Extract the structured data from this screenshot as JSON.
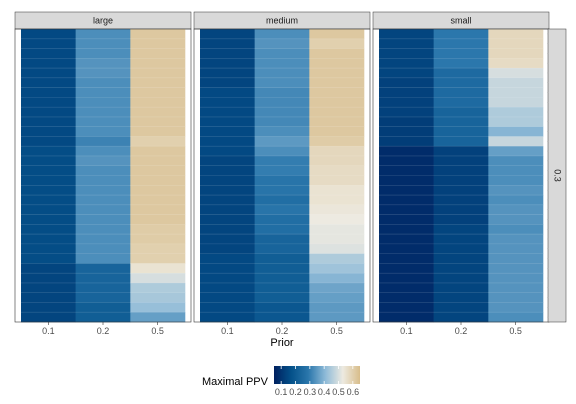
{
  "chart_data": {
    "type": "heatmap",
    "xlabel": "Prior",
    "x_categories": [
      "0.1",
      "0.2",
      "0.5"
    ],
    "facets": [
      "large",
      "medium",
      "small"
    ],
    "row_strip": "0.3",
    "legend": {
      "title": "Maximal PPV",
      "breaks": [
        "0.1",
        "0.2",
        "0.3",
        "0.4",
        "0.5",
        "0.6"
      ],
      "break_values": [
        0.1,
        0.2,
        0.3,
        0.4,
        0.5,
        0.6
      ],
      "limits": [
        0.05,
        0.65
      ],
      "palette": [
        "#00205f",
        "#04518a",
        "#2b77ac",
        "#8fbbd8",
        "#edeae1",
        "#d8bd8a"
      ],
      "placement": "bottom"
    },
    "rows": 30,
    "values": {
      "large": {
        "0.1": [
          0.15,
          0.15,
          0.15,
          0.15,
          0.15,
          0.15,
          0.15,
          0.15,
          0.15,
          0.15,
          0.15,
          0.15,
          0.16,
          0.16,
          0.16,
          0.16,
          0.16,
          0.16,
          0.16,
          0.16,
          0.16,
          0.16,
          0.16,
          0.16,
          0.14,
          0.14,
          0.14,
          0.14,
          0.14,
          0.14
        ],
        "0.2": [
          0.33,
          0.33,
          0.33,
          0.34,
          0.34,
          0.33,
          0.33,
          0.33,
          0.33,
          0.33,
          0.33,
          0.31,
          0.33,
          0.34,
          0.33,
          0.33,
          0.33,
          0.33,
          0.33,
          0.33,
          0.33,
          0.33,
          0.33,
          0.33,
          0.23,
          0.23,
          0.23,
          0.23,
          0.21,
          0.21
        ],
        "0.5": [
          0.62,
          0.62,
          0.62,
          0.62,
          0.62,
          0.62,
          0.62,
          0.62,
          0.62,
          0.62,
          0.62,
          0.6,
          0.62,
          0.62,
          0.62,
          0.62,
          0.62,
          0.62,
          0.62,
          0.62,
          0.61,
          0.61,
          0.6,
          0.6,
          0.55,
          0.5,
          0.45,
          0.44,
          0.42,
          0.36
        ]
      },
      "medium": {
        "0.1": [
          0.14,
          0.14,
          0.14,
          0.14,
          0.14,
          0.14,
          0.15,
          0.15,
          0.15,
          0.15,
          0.15,
          0.15,
          0.15,
          0.14,
          0.14,
          0.14,
          0.14,
          0.14,
          0.14,
          0.14,
          0.14,
          0.14,
          0.14,
          0.15,
          0.15,
          0.15,
          0.15,
          0.15,
          0.15,
          0.15
        ],
        "0.2": [
          0.33,
          0.34,
          0.33,
          0.33,
          0.33,
          0.33,
          0.32,
          0.32,
          0.32,
          0.32,
          0.33,
          0.35,
          0.33,
          0.3,
          0.3,
          0.28,
          0.28,
          0.26,
          0.28,
          0.26,
          0.26,
          0.23,
          0.23,
          0.21,
          0.21,
          0.21,
          0.21,
          0.21,
          0.19,
          0.19
        ],
        "0.5": [
          0.62,
          0.6,
          0.62,
          0.62,
          0.62,
          0.62,
          0.62,
          0.62,
          0.62,
          0.62,
          0.62,
          0.61,
          0.58,
          0.58,
          0.57,
          0.57,
          0.55,
          0.55,
          0.54,
          0.53,
          0.52,
          0.52,
          0.51,
          0.45,
          0.43,
          0.4,
          0.37,
          0.36,
          0.35,
          0.35
        ]
      },
      "small": {
        "0.1": [
          0.14,
          0.14,
          0.14,
          0.14,
          0.14,
          0.13,
          0.13,
          0.13,
          0.13,
          0.12,
          0.12,
          0.12,
          0.08,
          0.08,
          0.08,
          0.08,
          0.08,
          0.08,
          0.08,
          0.08,
          0.08,
          0.08,
          0.08,
          0.08,
          0.08,
          0.08,
          0.08,
          0.08,
          0.08,
          0.08
        ],
        "0.2": [
          0.29,
          0.29,
          0.29,
          0.29,
          0.25,
          0.25,
          0.25,
          0.25,
          0.23,
          0.23,
          0.23,
          0.23,
          0.13,
          0.13,
          0.13,
          0.13,
          0.13,
          0.13,
          0.13,
          0.13,
          0.14,
          0.14,
          0.14,
          0.14,
          0.14,
          0.14,
          0.14,
          0.14,
          0.14,
          0.14
        ],
        "0.5": [
          0.58,
          0.58,
          0.58,
          0.57,
          0.5,
          0.48,
          0.48,
          0.48,
          0.45,
          0.45,
          0.4,
          0.48,
          0.36,
          0.33,
          0.33,
          0.33,
          0.34,
          0.33,
          0.34,
          0.34,
          0.33,
          0.34,
          0.34,
          0.34,
          0.34,
          0.34,
          0.34,
          0.34,
          0.34,
          0.33
        ]
      }
    }
  }
}
